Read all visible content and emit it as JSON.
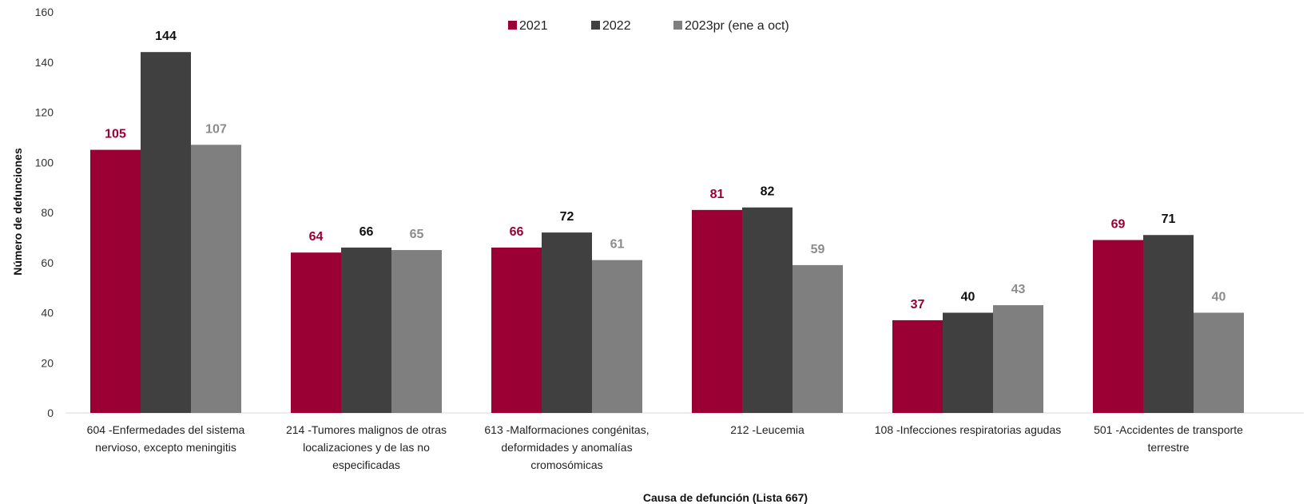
{
  "chart_data": {
    "type": "bar",
    "xlabel": "Causa de defunción (Lista 667)",
    "ylabel": "Número de defunciones",
    "ylim": [
      0,
      160
    ],
    "yticks": [
      0,
      20,
      40,
      60,
      80,
      100,
      120,
      140,
      160
    ],
    "grid": false,
    "legend_position": "top-center",
    "categories": [
      [
        "604 -Enfermedades del sistema",
        "nervioso, excepto meningitis"
      ],
      [
        "214 -Tumores malignos de otras",
        "localizaciones y de las no",
        "especificadas"
      ],
      [
        "613 -Malformaciones congénitas,",
        "deformidades y anomalías",
        "cromosómicas"
      ],
      [
        "212 -Leucemia"
      ],
      [
        "108 -Infecciones respiratorias agudas"
      ],
      [
        "501 -Accidentes de transporte",
        "terrestre"
      ]
    ],
    "series": [
      {
        "name": "2021",
        "color": "#9b0034",
        "label_color": "#9b0034",
        "values": [
          105,
          64,
          66,
          81,
          37,
          69
        ]
      },
      {
        "name": "2022",
        "color": "#404040",
        "label_color": "#111111",
        "values": [
          144,
          66,
          72,
          82,
          40,
          71
        ]
      },
      {
        "name": "2023pr (ene a oct)",
        "color": "#7f7f7f",
        "label_color": "#8c8c8c",
        "values": [
          107,
          65,
          61,
          59,
          43,
          40
        ]
      }
    ]
  }
}
